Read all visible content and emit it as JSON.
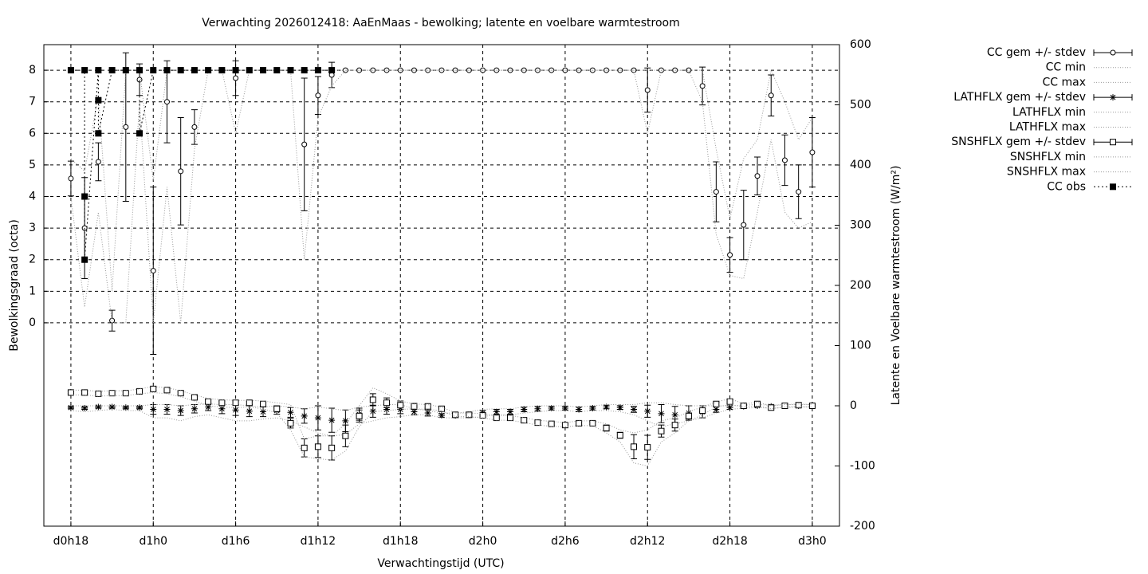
{
  "chart_data": {
    "type": "line",
    "title": "Verwachting 2026012418: AaEnMaas - bewolking; latente en voelbare warmtestroom",
    "xlabel": "Verwachtingstijd (UTC)",
    "ylabel": "Bewolkingsgraad (octa)",
    "y2label": "Latente en Voelbare warmtestroom (W/m²)",
    "grid": true,
    "x": [
      0,
      1,
      2,
      3,
      4,
      5,
      6,
      7,
      8,
      9,
      10,
      11,
      12,
      13,
      14,
      15,
      16,
      17,
      18,
      19,
      20,
      21,
      22,
      23,
      24,
      25,
      26,
      27,
      28,
      29,
      30,
      31,
      32,
      33,
      34,
      35,
      36,
      37,
      38,
      39,
      40,
      41,
      42,
      43,
      44,
      45,
      46,
      47,
      48,
      49,
      50,
      51,
      52,
      53,
      54
    ],
    "xlim": [
      -1.97,
      55.98
    ],
    "xticks": [
      {
        "value": 0,
        "label": "d0h18"
      },
      {
        "value": 6,
        "label": "d1h0"
      },
      {
        "value": 12,
        "label": "d1h6"
      },
      {
        "value": 18,
        "label": "d1h12"
      },
      {
        "value": 24,
        "label": "d1h18"
      },
      {
        "value": 30,
        "label": "d2h0"
      },
      {
        "value": 36,
        "label": "d2h6"
      },
      {
        "value": 42,
        "label": "d2h12"
      },
      {
        "value": 48,
        "label": "d2h18"
      },
      {
        "value": 54,
        "label": "d3h0"
      }
    ],
    "ylim": [
      -6.44,
      8.81
    ],
    "yticks": [
      0,
      1,
      2,
      3,
      4,
      5,
      6,
      7,
      8
    ],
    "y2lim": [
      -200,
      600
    ],
    "y2ticks": [
      -200,
      -100,
      0,
      100,
      200,
      300,
      400,
      500,
      600
    ],
    "series": [
      {
        "name": "CC gem +/- stdev",
        "style": "errorbars",
        "marker": "circle",
        "color": "#000000",
        "values": [
          4.57,
          3.0,
          5.1,
          0.07,
          6.2,
          7.7,
          1.65,
          7.0,
          4.8,
          6.2,
          8,
          8,
          7.75,
          8,
          8,
          8,
          8,
          5.65,
          7.2,
          7.85,
          8,
          8,
          8,
          8,
          8,
          8,
          8,
          8,
          8,
          8,
          8,
          8,
          8,
          8,
          8,
          8,
          8,
          8,
          8,
          8,
          8,
          8,
          7.37,
          8,
          8,
          8,
          7.5,
          4.15,
          2.15,
          3.1,
          4.65,
          7.2,
          5.15,
          4.15,
          5.4
        ],
        "errors": [
          0.55,
          1.6,
          0.6,
          0.33,
          2.35,
          0.5,
          2.65,
          1.3,
          1.7,
          0.55,
          0,
          0,
          0.55,
          0,
          0,
          0,
          0,
          2.1,
          0.6,
          0.4,
          0,
          0,
          0,
          0,
          0,
          0,
          0,
          0,
          0,
          0,
          0,
          0,
          0,
          0,
          0,
          0,
          0,
          0,
          0,
          0,
          0,
          0,
          0.7,
          0,
          0,
          0,
          0.6,
          0.95,
          0.55,
          1.1,
          0.6,
          0.65,
          0.8,
          0.85,
          1.1
        ]
      },
      {
        "name": "CC min",
        "style": "dotted",
        "color": "#999999",
        "values": [
          4,
          0.5,
          3.5,
          0,
          0,
          7,
          0,
          4.3,
          0,
          5.5,
          8,
          8,
          6,
          8,
          8,
          8,
          8,
          2,
          6.5,
          7.5,
          8,
          8,
          8,
          8,
          8,
          8,
          8,
          8,
          8,
          8,
          8,
          8,
          8,
          8,
          8,
          8,
          8,
          8,
          8,
          8,
          8,
          8,
          6,
          8,
          8,
          8,
          7,
          2.8,
          1.5,
          1.4,
          3.5,
          5.8,
          3.5,
          3,
          3.2
        ]
      },
      {
        "name": "CC max",
        "style": "dotted",
        "color": "#999999",
        "values": [
          5.2,
          4.8,
          7.2,
          1,
          8,
          8,
          4.5,
          8,
          8,
          8,
          8,
          8,
          8,
          8,
          8,
          8,
          8,
          8,
          8,
          8,
          8,
          8,
          8,
          8,
          8,
          8,
          8,
          8,
          8,
          8,
          8,
          8,
          8,
          8,
          8,
          8,
          8,
          8,
          8,
          8,
          8,
          8,
          8,
          8,
          8,
          8,
          8,
          5.5,
          3.3,
          5.2,
          5.8,
          8,
          7,
          5.8,
          6.5
        ]
      },
      {
        "name": "LATHFLX gem +/- stdev",
        "style": "errorbars",
        "marker": "star",
        "color": "#000000",
        "axis": "y2",
        "values": [
          -3,
          -4,
          -2,
          -2,
          -3,
          -3,
          -6,
          -6,
          -8,
          -5,
          -2,
          -5,
          -7,
          -9,
          -10,
          -8,
          -11,
          -17,
          -20,
          -24,
          -25,
          -14,
          -9,
          -6,
          -6,
          -10,
          -12,
          -16,
          -16,
          -15,
          -12,
          -10,
          -10,
          -6,
          -5,
          -4,
          -4,
          -6,
          -4,
          -2,
          -3,
          -6,
          -9,
          -13,
          -15,
          -12,
          -10,
          -6,
          -3,
          -1,
          0,
          -1,
          0,
          0,
          0
        ],
        "errors": [
          2,
          2,
          2,
          2,
          2,
          2,
          8,
          8,
          8,
          7,
          6,
          8,
          9,
          9,
          8,
          6,
          8,
          12,
          20,
          20,
          18,
          10,
          10,
          8,
          7,
          5,
          5,
          3,
          3,
          3,
          4,
          4,
          4,
          4,
          4,
          3,
          3,
          4,
          3,
          3,
          3,
          5,
          10,
          15,
          14,
          12,
          10,
          5,
          3,
          2,
          2,
          2,
          2,
          2,
          2
        ]
      },
      {
        "name": "LATHFLX min",
        "style": "dotted",
        "color": "#999999",
        "axis": "y2",
        "values": [
          -8,
          -10,
          -8,
          -6,
          -8,
          -8,
          -20,
          -20,
          -25,
          -18,
          -15,
          -20,
          -25,
          -25,
          -22,
          -20,
          -25,
          -35,
          -45,
          -50,
          -48,
          -30,
          -25,
          -20,
          -18,
          -15,
          -15,
          -20,
          -20,
          -20,
          -18,
          -15,
          -15,
          -12,
          -10,
          -8,
          -8,
          -10,
          -8,
          -8,
          -10,
          -15,
          -25,
          -35,
          -30,
          -25,
          -20,
          -12,
          -6,
          -4,
          -3,
          -4,
          -3,
          -2,
          -2
        ]
      },
      {
        "name": "LATHFLX max",
        "style": "dotted",
        "color": "#999999",
        "axis": "y2",
        "values": [
          0,
          0,
          0,
          0,
          0,
          0,
          2,
          2,
          0,
          2,
          3,
          2,
          2,
          0,
          -2,
          0,
          -2,
          -5,
          -2,
          -5,
          -8,
          -2,
          0,
          2,
          2,
          -5,
          -8,
          -12,
          -12,
          -10,
          -6,
          -5,
          -5,
          -2,
          0,
          0,
          0,
          -2,
          0,
          2,
          2,
          2,
          5,
          5,
          2,
          0,
          0,
          0,
          0,
          1,
          2,
          1,
          2,
          2,
          2
        ]
      },
      {
        "name": "SNSHFLX gem +/- stdev",
        "style": "errorbars",
        "marker": "square",
        "color": "#000000",
        "axis": "y2",
        "values": [
          22,
          22,
          20,
          21,
          21,
          24,
          28,
          26,
          21,
          14,
          7,
          5,
          5,
          5,
          3,
          -5,
          -29,
          -70,
          -68,
          -70,
          -50,
          -17,
          10,
          5,
          1,
          -1,
          -1,
          -5,
          -15,
          -15,
          -16,
          -20,
          -20,
          -24,
          -28,
          -30,
          -32,
          -29,
          -29,
          -37,
          -49,
          -68,
          -69,
          -42,
          -32,
          -17,
          -8,
          3,
          7,
          0,
          3,
          -3,
          0,
          1,
          0
        ],
        "errors": [
          2,
          2,
          2,
          2,
          2,
          2,
          2,
          2,
          2,
          3,
          3,
          3,
          3,
          3,
          3,
          5,
          8,
          15,
          18,
          20,
          18,
          10,
          10,
          8,
          7,
          5,
          3,
          3,
          3,
          3,
          3,
          3,
          3,
          3,
          3,
          3,
          3,
          3,
          3,
          5,
          5,
          20,
          20,
          10,
          10,
          5,
          4,
          3,
          3,
          2,
          2,
          2,
          2,
          2,
          2
        ]
      },
      {
        "name": "SNSHFLX min",
        "style": "dotted",
        "color": "#999999",
        "axis": "y2",
        "values": [
          18,
          18,
          16,
          17,
          17,
          20,
          22,
          20,
          15,
          8,
          0,
          -2,
          -3,
          -2,
          -5,
          -12,
          -40,
          -85,
          -88,
          -90,
          -75,
          -35,
          -10,
          -8,
          -6,
          -5,
          -6,
          -8,
          -18,
          -18,
          -20,
          -24,
          -24,
          -28,
          -32,
          -34,
          -35,
          -33,
          -33,
          -45,
          -60,
          -95,
          -100,
          -60,
          -45,
          -25,
          -15,
          -2,
          2,
          -2,
          0,
          -5,
          -2,
          -1,
          -2
        ]
      },
      {
        "name": "SNSHFLX max",
        "style": "dotted",
        "color": "#999999",
        "axis": "y2",
        "values": [
          26,
          26,
          24,
          25,
          25,
          28,
          32,
          30,
          25,
          18,
          12,
          10,
          9,
          9,
          8,
          5,
          2,
          -55,
          -50,
          -50,
          -30,
          0,
          30,
          20,
          8,
          3,
          2,
          -2,
          -12,
          -12,
          -13,
          -16,
          -16,
          -20,
          -24,
          -26,
          -28,
          -25,
          -25,
          -30,
          -40,
          -45,
          -40,
          -25,
          -20,
          -10,
          -2,
          6,
          12,
          3,
          6,
          0,
          2,
          3,
          2
        ]
      },
      {
        "name": "CC obs",
        "style": "obs",
        "marker": "filled-square",
        "color": "#000000",
        "x": [
          0,
          1,
          1,
          1,
          2,
          2,
          2,
          3,
          4,
          5,
          5,
          6,
          7,
          8,
          9,
          10,
          11,
          12,
          13,
          14,
          15,
          16,
          17,
          18,
          19
        ],
        "values": [
          8,
          8,
          4,
          2,
          8,
          7.05,
          6,
          8,
          8,
          8,
          6,
          8,
          8,
          8,
          8,
          8,
          8,
          8,
          8,
          8,
          8,
          8,
          8,
          8,
          8
        ]
      }
    ]
  }
}
